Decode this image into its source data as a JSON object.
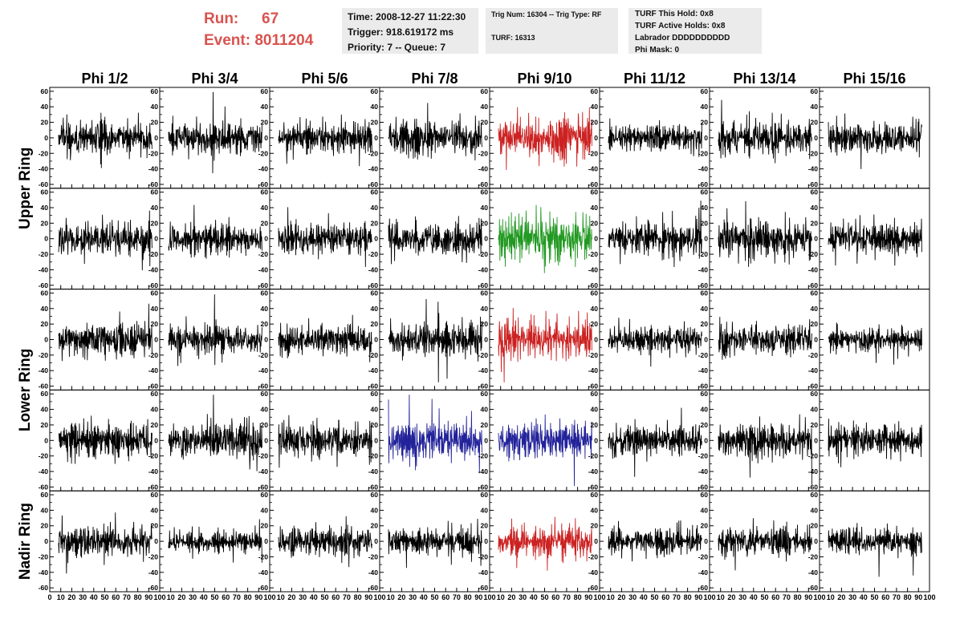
{
  "run_label": "Run:",
  "run_value": "67",
  "event_label": "Event:",
  "event_value": "8011204",
  "time_line": "Time: 2008-12-27 11:22:30",
  "trigger_line": "Trigger: 918.619172 ms",
  "priority_line": "Priority: 7 -- Queue: 7",
  "trig_line": "Trig Num: 16304 -- Trig Type: RF",
  "turf_line": "TURF: 16313",
  "turf_hold_line": "TURF This Hold: 0x8",
  "turf_active_line": "TURF Active Holds: 0x8",
  "labrador_line": "Labrador DDDDDDDDDD",
  "phi_mask_line": "Phi Mask: 0",
  "colors": {
    "run_text": "#d9534f",
    "trace_default": "#000000",
    "trace_red": "#cc2222",
    "trace_green": "#229922",
    "trace_blue": "#22229a",
    "info_bg": "#ebebeb"
  },
  "chart_data": {
    "type": "line",
    "layout": "grid",
    "columns": [
      "Phi 1/2",
      "Phi 3/4",
      "Phi 5/6",
      "Phi 7/8",
      "Phi 9/10",
      "Phi 11/12",
      "Phi 13/14",
      "Phi 15/16"
    ],
    "ring_labels": [
      "Upper Ring",
      "Lower Ring",
      "Nadir Ring"
    ],
    "ring_label_rows": [
      [
        0,
        1
      ],
      [
        2,
        3
      ],
      [
        4,
        4
      ]
    ],
    "row_count": 5,
    "xlim": [
      0,
      100
    ],
    "ylim": [
      -65,
      65
    ],
    "xticks": [
      0,
      10,
      20,
      30,
      40,
      50,
      60,
      70,
      80,
      90,
      100
    ],
    "yticks": [
      -60,
      -40,
      -20,
      0,
      20,
      40,
      60
    ],
    "highlighted": [
      {
        "row": 0,
        "col": 4,
        "color": "red"
      },
      {
        "row": 1,
        "col": 4,
        "color": "green"
      },
      {
        "row": 2,
        "col": 4,
        "color": "red"
      },
      {
        "row": 3,
        "col": 3,
        "color": "blue"
      },
      {
        "row": 3,
        "col": 4,
        "color": "blue"
      },
      {
        "row": 4,
        "col": 4,
        "color": "red"
      }
    ],
    "approx_amplitude": [
      [
        25,
        22,
        22,
        22,
        30,
        18,
        25,
        22
      ],
      [
        25,
        20,
        20,
        22,
        32,
        22,
        25,
        22
      ],
      [
        22,
        18,
        20,
        22,
        28,
        18,
        22,
        15
      ],
      [
        22,
        25,
        22,
        25,
        25,
        22,
        22,
        22
      ],
      [
        22,
        15,
        20,
        18,
        22,
        18,
        20,
        18
      ]
    ]
  }
}
